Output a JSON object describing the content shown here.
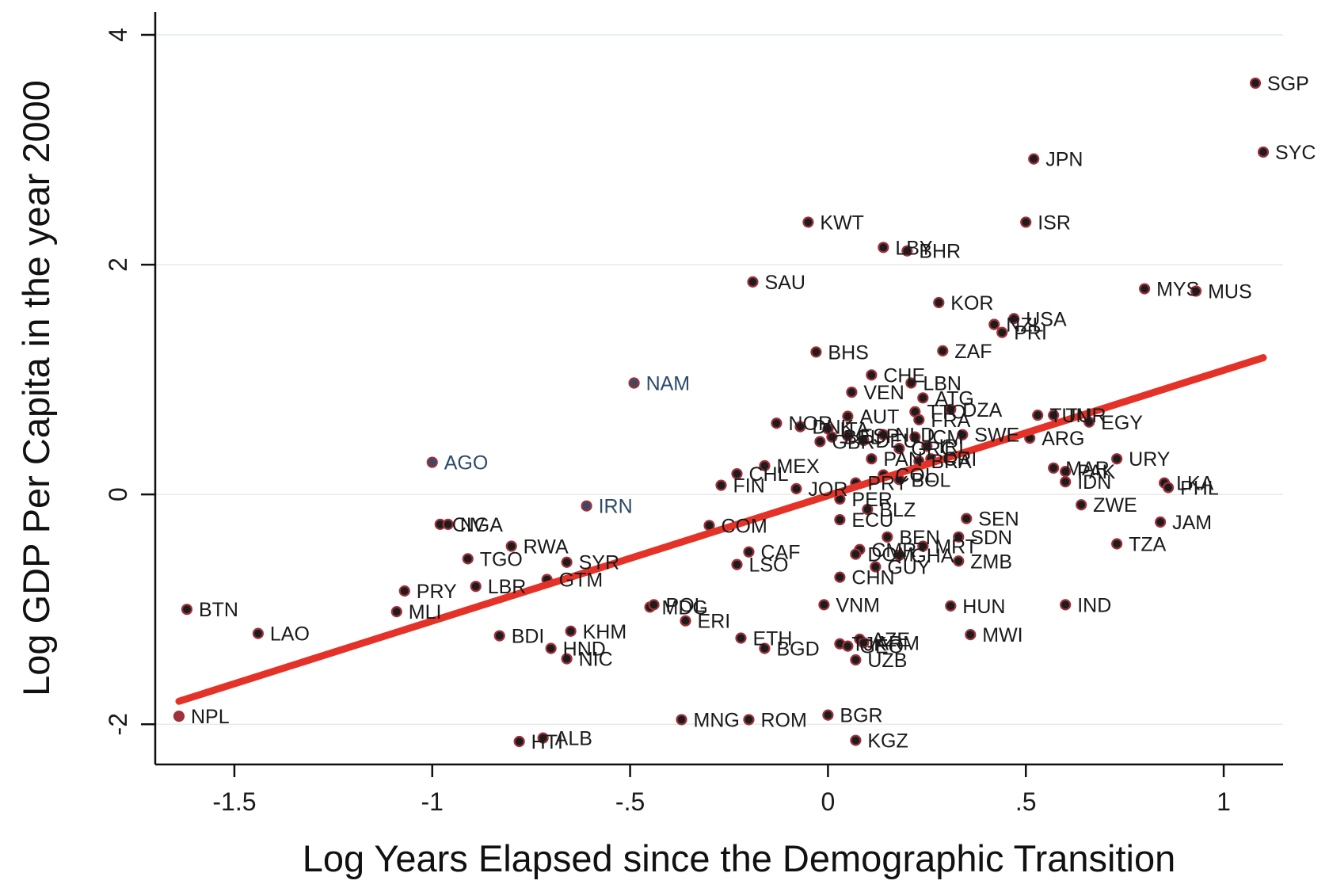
{
  "chart_data": {
    "type": "scatter",
    "title": "",
    "xlabel": "Log Years Elapsed since the Demographic Transition",
    "ylabel": "Log GDP Per Capita in the year 2000",
    "xlim": [
      -1.7,
      1.15
    ],
    "ylim": [
      -2.35,
      4.2
    ],
    "x_ticks": [
      {
        "value": -1.5,
        "label": "-1.5"
      },
      {
        "value": -1,
        "label": "-1"
      },
      {
        "value": -0.5,
        "label": "-.5"
      },
      {
        "value": 0,
        "label": "0"
      },
      {
        "value": 0.5,
        "label": ".5"
      },
      {
        "value": 1,
        "label": "1"
      }
    ],
    "y_ticks": [
      {
        "value": -2,
        "label": "-2"
      },
      {
        "value": 0,
        "label": "0"
      },
      {
        "value": 2,
        "label": "2"
      },
      {
        "value": 4,
        "label": "4"
      }
    ],
    "grid": "horizontal",
    "fit_line": {
      "x": [
        -1.64,
        1.1
      ],
      "y": [
        -1.8,
        1.19
      ],
      "color": "#e53228"
    },
    "colors": {
      "point_fill": "#1c1c1c",
      "point_ring": "#a0303a",
      "default_label": "#1a1a1a",
      "highlight_label": "#2c4a6b",
      "highlight_point": "#3a4a66",
      "npl_point": "#a0303a",
      "axis": "#111111",
      "grid": "#e4ece8"
    },
    "points": [
      {
        "label": "SGP",
        "x": 1.08,
        "y": 3.58
      },
      {
        "label": "SYC",
        "x": 1.1,
        "y": 2.98
      },
      {
        "label": "JPN",
        "x": 0.52,
        "y": 2.92
      },
      {
        "label": "ISR",
        "x": 0.5,
        "y": 2.37
      },
      {
        "label": "KWT",
        "x": -0.05,
        "y": 2.37
      },
      {
        "label": "LBY",
        "x": 0.14,
        "y": 2.15
      },
      {
        "label": "BHR",
        "x": 0.2,
        "y": 2.12
      },
      {
        "label": "SAU",
        "x": -0.19,
        "y": 1.85
      },
      {
        "label": "MYS",
        "x": 0.8,
        "y": 1.79
      },
      {
        "label": "MUS",
        "x": 0.93,
        "y": 1.77
      },
      {
        "label": "KOR",
        "x": 0.28,
        "y": 1.67
      },
      {
        "label": "USA",
        "x": 0.47,
        "y": 1.53
      },
      {
        "label": "NZL",
        "x": 0.42,
        "y": 1.48
      },
      {
        "label": "PRI",
        "x": 0.44,
        "y": 1.41
      },
      {
        "label": "BHS",
        "x": -0.03,
        "y": 1.24
      },
      {
        "label": "ZAF",
        "x": 0.29,
        "y": 1.25
      },
      {
        "label": "CHE",
        "x": 0.11,
        "y": 1.04
      },
      {
        "label": "LBN",
        "x": 0.21,
        "y": 0.97
      },
      {
        "label": "NAM",
        "x": -0.49,
        "y": 0.97
      },
      {
        "label": "VEN",
        "x": 0.06,
        "y": 0.89
      },
      {
        "label": "ATG",
        "x": 0.24,
        "y": 0.84
      },
      {
        "label": "DZA",
        "x": 0.31,
        "y": 0.74
      },
      {
        "label": "TTO",
        "x": 0.22,
        "y": 0.72
      },
      {
        "label": "AUT",
        "x": 0.05,
        "y": 0.68
      },
      {
        "label": "FRA",
        "x": 0.23,
        "y": 0.65
      },
      {
        "label": "TUN",
        "x": 0.53,
        "y": 0.69
      },
      {
        "label": "TUR",
        "x": 0.57,
        "y": 0.69
      },
      {
        "label": "EGY",
        "x": 0.66,
        "y": 0.63
      },
      {
        "label": "NOR",
        "x": -0.13,
        "y": 0.62
      },
      {
        "label": "DNK",
        "x": -0.07,
        "y": 0.59
      },
      {
        "label": "ITA",
        "x": 0.0,
        "y": 0.57
      },
      {
        "label": "SWE",
        "x": 0.34,
        "y": 0.52
      },
      {
        "label": "ARG",
        "x": 0.51,
        "y": 0.49
      },
      {
        "label": "GBR",
        "x": -0.02,
        "y": 0.46
      },
      {
        "label": "BEL",
        "x": 0.01,
        "y": 0.5
      },
      {
        "label": "ESP",
        "x": 0.05,
        "y": 0.51
      },
      {
        "label": "DEU",
        "x": 0.09,
        "y": 0.47
      },
      {
        "label": "NLD",
        "x": 0.14,
        "y": 0.52
      },
      {
        "label": "ICM",
        "x": 0.22,
        "y": 0.5
      },
      {
        "label": "IRL",
        "x": 0.25,
        "y": 0.42
      },
      {
        "label": "GRC",
        "x": 0.18,
        "y": 0.4
      },
      {
        "label": "URY",
        "x": 0.73,
        "y": 0.31
      },
      {
        "label": "PAN",
        "x": 0.11,
        "y": 0.31
      },
      {
        "label": "BRA",
        "x": 0.23,
        "y": 0.29
      },
      {
        "label": "CRI",
        "x": 0.26,
        "y": 0.31
      },
      {
        "label": "MEX",
        "x": -0.16,
        "y": 0.25
      },
      {
        "label": "CHL",
        "x": -0.23,
        "y": 0.18
      },
      {
        "label": "MAR",
        "x": 0.57,
        "y": 0.23
      },
      {
        "label": "PAK",
        "x": 0.6,
        "y": 0.2
      },
      {
        "label": "IDN",
        "x": 0.6,
        "y": 0.11
      },
      {
        "label": "COL",
        "x": 0.14,
        "y": 0.17
      },
      {
        "label": "BOL",
        "x": 0.18,
        "y": 0.13
      },
      {
        "label": "LKA",
        "x": 0.85,
        "y": 0.1
      },
      {
        "label": "PHL",
        "x": 0.86,
        "y": 0.06
      },
      {
        "label": "FIN",
        "x": -0.27,
        "y": 0.08
      },
      {
        "label": "JOR",
        "x": -0.08,
        "y": 0.05
      },
      {
        "label": "PRY",
        "x": 0.07,
        "y": 0.1
      },
      {
        "label": "PER",
        "x": 0.03,
        "y": -0.04
      },
      {
        "label": "AGO",
        "x": -1.0,
        "y": 0.28
      },
      {
        "label": "IRN",
        "x": -0.61,
        "y": -0.1
      },
      {
        "label": "BLZ",
        "x": 0.1,
        "y": -0.13
      },
      {
        "label": "ZWE",
        "x": 0.64,
        "y": -0.09
      },
      {
        "label": "ECU",
        "x": 0.03,
        "y": -0.22
      },
      {
        "label": "SEN",
        "x": 0.35,
        "y": -0.21
      },
      {
        "label": "JAM",
        "x": 0.84,
        "y": -0.24
      },
      {
        "label": "CIV",
        "x": -0.98,
        "y": -0.26
      },
      {
        "label": "NGA",
        "x": -0.96,
        "y": -0.26
      },
      {
        "label": "COM",
        "x": -0.3,
        "y": -0.27
      },
      {
        "label": "BEN",
        "x": 0.15,
        "y": -0.37
      },
      {
        "label": "SDN",
        "x": 0.33,
        "y": -0.37
      },
      {
        "label": "RWA",
        "x": -0.8,
        "y": -0.45
      },
      {
        "label": "TZA",
        "x": 0.73,
        "y": -0.43
      },
      {
        "label": "MRT",
        "x": 0.24,
        "y": -0.45
      },
      {
        "label": "CMR",
        "x": 0.08,
        "y": -0.48
      },
      {
        "label": "CAF",
        "x": -0.2,
        "y": -0.5
      },
      {
        "label": "DOM",
        "x": 0.07,
        "y": -0.52
      },
      {
        "label": "GHA",
        "x": 0.18,
        "y": -0.53
      },
      {
        "label": "TGO",
        "x": -0.91,
        "y": -0.56
      },
      {
        "label": "SYR",
        "x": -0.66,
        "y": -0.59
      },
      {
        "label": "ZMB",
        "x": 0.33,
        "y": -0.58
      },
      {
        "label": "LSO",
        "x": -0.23,
        "y": -0.61
      },
      {
        "label": "GUY",
        "x": 0.12,
        "y": -0.63
      },
      {
        "label": "CHN",
        "x": 0.03,
        "y": -0.72
      },
      {
        "label": "GTM",
        "x": -0.71,
        "y": -0.74
      },
      {
        "label": "LBR",
        "x": -0.89,
        "y": -0.8
      },
      {
        "label": "PRY",
        "x": -1.07,
        "y": -0.84
      },
      {
        "label": "BTN",
        "x": -1.62,
        "y": -1.0
      },
      {
        "label": "MLI",
        "x": -1.09,
        "y": -1.02
      },
      {
        "label": "VNM",
        "x": -0.01,
        "y": -0.96
      },
      {
        "label": "HUN",
        "x": 0.31,
        "y": -0.97
      },
      {
        "label": "IND",
        "x": 0.6,
        "y": -0.96
      },
      {
        "label": "MDG",
        "x": -0.45,
        "y": -0.98
      },
      {
        "label": "POL",
        "x": -0.44,
        "y": -0.96
      },
      {
        "label": "ERI",
        "x": -0.36,
        "y": -1.1
      },
      {
        "label": "LAO",
        "x": -1.44,
        "y": -1.21
      },
      {
        "label": "BDI",
        "x": -0.83,
        "y": -1.23
      },
      {
        "label": "KHM",
        "x": -0.65,
        "y": -1.19
      },
      {
        "label": "MWI",
        "x": 0.36,
        "y": -1.22
      },
      {
        "label": "ETH",
        "x": -0.22,
        "y": -1.25
      },
      {
        "label": "HND",
        "x": -0.7,
        "y": -1.34
      },
      {
        "label": "BGD",
        "x": -0.16,
        "y": -1.34
      },
      {
        "label": "AZE",
        "x": 0.08,
        "y": -1.26
      },
      {
        "label": "ARM",
        "x": 0.09,
        "y": -1.29
      },
      {
        "label": "TJK",
        "x": 0.03,
        "y": -1.3
      },
      {
        "label": "GEO",
        "x": 0.05,
        "y": -1.32
      },
      {
        "label": "NIC",
        "x": -0.66,
        "y": -1.43
      },
      {
        "label": "UZB",
        "x": 0.07,
        "y": -1.44
      },
      {
        "label": "NPL",
        "x": -1.64,
        "y": -1.93
      },
      {
        "label": "MNG",
        "x": -0.37,
        "y": -1.96
      },
      {
        "label": "ROM",
        "x": -0.2,
        "y": -1.96
      },
      {
        "label": "BGR",
        "x": 0.0,
        "y": -1.92
      },
      {
        "label": "ALB",
        "x": -0.72,
        "y": -2.12
      },
      {
        "label": "HTI",
        "x": -0.78,
        "y": -2.15
      },
      {
        "label": "KGZ",
        "x": 0.07,
        "y": -2.14
      }
    ],
    "highlighted_labels": [
      "AGO",
      "NAM",
      "IRN"
    ]
  }
}
